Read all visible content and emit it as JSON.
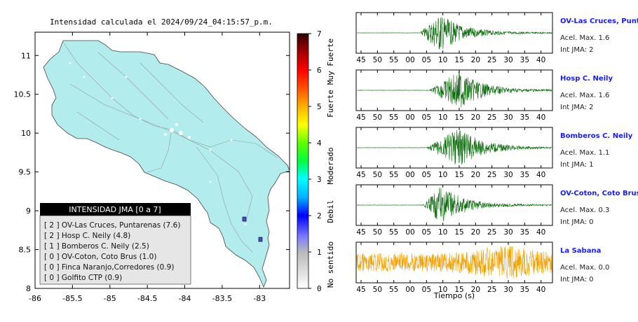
{
  "map": {
    "title": "Intensidad calculada el 2024/09/24_04:15:57_p.m.",
    "x_ticks": [
      "-86",
      "-85.5",
      "-85",
      "-84.5",
      "-84",
      "-83.5",
      "-83"
    ],
    "y_ticks": [
      "11",
      "10.5",
      "10",
      "9.5",
      "9",
      "8.5",
      "8"
    ],
    "land_color": "#b3ecec"
  },
  "legend": {
    "title": "INTENSIDAD JMA [0 a 7]",
    "items": [
      "[ 2 ]  OV-Las Cruces, Puntarenas (7.6)",
      "[ 2 ]  Hosp C. Neily (4.8)",
      "[ 1 ]  Bomberos C. Neily (2.5)",
      "[ 0 ]  OV-Coton, Coto Brus (1.0)",
      "[ 0 ]  Finca Naranjo,Corredores (0.9)",
      "[ 0 ]  Golfito CTP (0.9)"
    ]
  },
  "colorbar": {
    "ticks": [
      "7",
      "6",
      "5",
      "4",
      "3",
      "2",
      "1",
      "0"
    ],
    "labels": [
      "Muy Fuerte",
      "Fuerte",
      "Moderado",
      "Debil",
      "No sentido"
    ]
  },
  "waveforms": {
    "xlabel": "Tiempo (s)",
    "tick_labels": [
      "45",
      "50",
      "55",
      "00",
      "05",
      "10",
      "15",
      "20",
      "25",
      "30",
      "35",
      "40"
    ],
    "stations": [
      {
        "name": "OV-Las Cruces, Puntar",
        "accel": "Acel. Max. 1.6",
        "int": "Int JMA: 2",
        "color": "#0a6b0a"
      },
      {
        "name": "Hosp C. Neily",
        "accel": "Acel. Max. 1.6",
        "int": "Int JMA: 2",
        "color": "#0a6b0a"
      },
      {
        "name": "Bomberos C. Neily",
        "accel": "Acel. Max. 1.1",
        "int": "Int JMA: 1",
        "color": "#0a6b0a"
      },
      {
        "name": "OV-Coton, Coto Brus",
        "accel": "Acel. Max. 0.3",
        "int": "Int JMA: 0",
        "color": "#0a6b0a"
      },
      {
        "name": "La Sabana",
        "accel": "Acel. Max. 0.0",
        "int": "Int JMA: 0",
        "color": "#f0a000"
      }
    ]
  },
  "chart_data": [
    {
      "type": "scatter",
      "title": "Intensidad calculada el 2024/09/24_04:15:57_p.m.",
      "xlim": [
        -86,
        -82.6
      ],
      "ylim": [
        8,
        11.3
      ],
      "x_ticks": [
        -86,
        -85.5,
        -85,
        -84.5,
        -84,
        -83.5,
        -83
      ],
      "y_ticks": [
        8,
        8.5,
        9,
        9.5,
        10,
        10.5,
        11
      ],
      "colorbar": {
        "min": 0,
        "max": 7,
        "ticks": [
          0,
          1,
          2,
          3,
          4,
          5,
          6,
          7
        ]
      },
      "stations": [
        {
          "lon": -83.15,
          "lat": 8.89,
          "intensity": 2
        },
        {
          "lon": -82.95,
          "lat": 8.63,
          "intensity": 2
        }
      ]
    },
    {
      "type": "line",
      "xlabel": "Tiempo (s)",
      "x_tick_labels": [
        "45",
        "50",
        "55",
        "00",
        "05",
        "10",
        "15",
        "20",
        "25",
        "30",
        "35",
        "40"
      ],
      "series": [
        {
          "name": "OV-Las Cruces, Puntar",
          "onset": 3.0,
          "peak": 9.0,
          "relative_amplitude": 1.0
        },
        {
          "name": "Hosp C. Neily",
          "onset": 6.0,
          "peak": 15.0,
          "relative_amplitude": 1.0
        },
        {
          "name": "Bomberos C. Neily",
          "onset": 5.0,
          "peak": 15.0,
          "relative_amplitude": 1.0
        },
        {
          "name": "OV-Coton, Coto Brus",
          "onset": 4.0,
          "peak": 9.5,
          "relative_amplitude": 1.0
        },
        {
          "name": "La Sabana",
          "onset": -15.0,
          "peak": 29.0,
          "relative_amplitude": 0.9
        }
      ]
    }
  ]
}
